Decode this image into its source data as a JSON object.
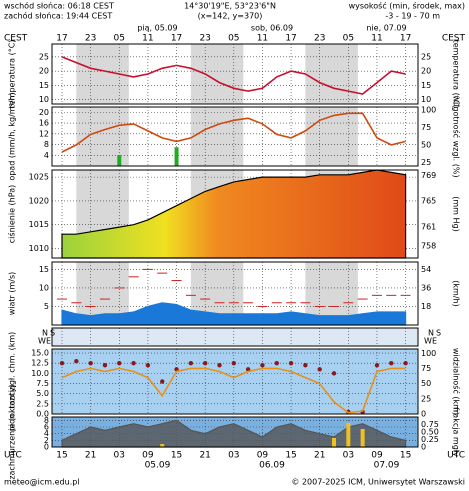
{
  "header": {
    "sunrise": "wschód słońca: 06:18 CEST",
    "sunset": "zachód słońca: 19:44 CEST",
    "coords": "14°30'19\"E, 53°23'6\"N",
    "grid": "(x=142, y=370)",
    "height_title": "wysokość (min, środek, max)",
    "height_values": "-3 - 19 - 70 m"
  },
  "footer": {
    "email": "meteo@icm.edu.pl",
    "copyright": "© 2007-2025 ICM, Uniwersytet Warszawski"
  },
  "time_axis": {
    "cest_label": "CEST",
    "utc_label": "UTC",
    "xlim": [
      -2.1,
      74.6
    ],
    "x": [
      0,
      3,
      6,
      9,
      12,
      15,
      18,
      21,
      24,
      27,
      30,
      33,
      36,
      39,
      42,
      45,
      48,
      51,
      54,
      57,
      60,
      63,
      66,
      69,
      72
    ],
    "cest_ticks": [
      {
        "value": 0,
        "label": "17"
      },
      {
        "value": 6,
        "label": "23"
      },
      {
        "value": 12,
        "label": "05"
      },
      {
        "value": 18,
        "label": "11"
      },
      {
        "value": 24,
        "label": "17"
      },
      {
        "value": 30,
        "label": "23"
      },
      {
        "value": 36,
        "label": "05"
      },
      {
        "value": 42,
        "label": "11"
      },
      {
        "value": 48,
        "label": "17"
      },
      {
        "value": 54,
        "label": "23"
      },
      {
        "value": 60,
        "label": "05"
      },
      {
        "value": 66,
        "label": "11"
      },
      {
        "value": 72,
        "label": "17"
      }
    ],
    "utc_ticks": [
      {
        "value": 0,
        "label": "15"
      },
      {
        "value": 6,
        "label": "21"
      },
      {
        "value": 12,
        "label": "03"
      },
      {
        "value": 18,
        "label": "09"
      },
      {
        "value": 24,
        "label": "15"
      },
      {
        "value": 30,
        "label": "21"
      },
      {
        "value": 36,
        "label": "03"
      },
      {
        "value": 42,
        "label": "09"
      },
      {
        "value": 48,
        "label": "15"
      },
      {
        "value": 54,
        "label": "21"
      },
      {
        "value": 60,
        "label": "03"
      },
      {
        "value": 66,
        "label": "09"
      },
      {
        "value": 72,
        "label": "15"
      }
    ],
    "top_dates": [
      {
        "value": 20,
        "label": "pią, 05.09"
      },
      {
        "value": 44,
        "label": "sob, 06.09"
      },
      {
        "value": 68,
        "label": "nie, 07.09"
      }
    ],
    "bottom_dates": [
      {
        "value": 20,
        "label": "05.09"
      },
      {
        "value": 44,
        "label": "06.09"
      },
      {
        "value": 68,
        "label": "07.09"
      }
    ]
  },
  "chart_data": [
    {
      "type": "line",
      "ylabel": "temperatura (°C)",
      "y2label": "temperatura (°C)",
      "ylim": [
        8.5,
        29.5
      ],
      "yticks": [
        10,
        15,
        20,
        25
      ],
      "y2lim": [
        8.5,
        29.5
      ],
      "y2ticks": [
        10,
        15,
        20,
        25
      ],
      "grid": true,
      "series": [
        {
          "type": "line",
          "color": "#c8102e",
          "values": [
            25,
            23,
            21,
            20,
            19,
            18,
            19,
            21,
            22,
            21,
            19,
            16,
            14,
            13,
            14,
            18,
            20,
            19,
            16,
            14,
            13,
            12,
            16,
            20,
            19
          ]
        }
      ]
    },
    {
      "type": "line",
      "ylabel": "opad (mm/h, kg/m²/h)",
      "y2label": "wilgotność wzgl. (%)",
      "ylim": [
        0,
        22
      ],
      "yticks": [
        4,
        8,
        12,
        16,
        20
      ],
      "y2lim": [
        20,
        104
      ],
      "y2ticks": [
        25,
        50,
        75,
        100
      ],
      "grid": true,
      "series": [
        {
          "type": "bar",
          "color": "#22aa22",
          "values": [
            0,
            0,
            0,
            0,
            4,
            0,
            0,
            0,
            7,
            0,
            0,
            0,
            0,
            0,
            0,
            0,
            0,
            0,
            0,
            0,
            0,
            0,
            0,
            0,
            0
          ]
        },
        {
          "type": "line",
          "axis": "y2",
          "color": "#d04a10",
          "values": [
            40,
            50,
            65,
            72,
            78,
            80,
            70,
            60,
            55,
            60,
            72,
            80,
            85,
            88,
            80,
            65,
            60,
            70,
            85,
            92,
            95,
            95,
            60,
            50,
            55
          ]
        }
      ]
    },
    {
      "type": "area",
      "ylabel": "ciśnienie (hPa)",
      "y2label": "(mm Hg)",
      "ylim": [
        1008,
        1026.5
      ],
      "yticks": [
        1010,
        1015,
        1020,
        1025
      ],
      "y2lim": [
        756.1,
        769.9
      ],
      "y2ticks": [
        758,
        761,
        765,
        769
      ],
      "grid": true,
      "series": [
        {
          "type": "area",
          "color": "#000000",
          "values": [
            1013,
            1013,
            1013.5,
            1014,
            1014.5,
            1015,
            1016,
            1017.5,
            1019,
            1020.5,
            1022,
            1023,
            1024,
            1024.5,
            1025,
            1025,
            1025,
            1025,
            1025.5,
            1025.5,
            1025.5,
            1026,
            1026.5,
            1026,
            1025.5
          ]
        }
      ]
    },
    {
      "type": "area",
      "ylabel": "wiatr (m/s)",
      "y2label": "(km/h)",
      "ylim": [
        0,
        17
      ],
      "yticks": [
        5,
        10,
        15
      ],
      "y2lim": [
        0,
        61.2
      ],
      "y2ticks": [
        18,
        36,
        54
      ],
      "grid": true,
      "series": [
        {
          "type": "area",
          "color": "#1a78d8",
          "values": [
            4,
            3,
            2.5,
            3,
            3,
            3.5,
            5,
            6,
            5.5,
            4,
            3.5,
            3,
            3,
            3,
            3,
            3,
            3.5,
            3,
            2.5,
            2.5,
            2.5,
            3,
            3.5,
            3.5,
            3.5
          ]
        },
        {
          "type": "dash",
          "color": "#d02020",
          "values": [
            7,
            6,
            5,
            7,
            10,
            13,
            15,
            14,
            12,
            8,
            7,
            6,
            6,
            6,
            5,
            6,
            6,
            6,
            5,
            5,
            6,
            7,
            8,
            8,
            8
          ]
        }
      ]
    },
    {
      "type": "direction",
      "labels": [
        "W",
        "N",
        "E",
        "S"
      ]
    },
    {
      "type": "line",
      "ylabel": "pion. rozciągł. chm. (km)",
      "y2label": "widzialność (km)",
      "ylim": [
        0,
        16
      ],
      "yticks": [
        {
          "value": 0,
          "label": "0.0"
        },
        2.5,
        {
          "value": 5,
          "label": "5.0"
        },
        7.5,
        {
          "value": 10,
          "label": "10.0"
        },
        12.5,
        {
          "value": 15,
          "label": "15.0"
        }
      ],
      "y2lim": [
        0,
        107
      ],
      "y2ticks": [
        0,
        25,
        50,
        75,
        100
      ],
      "grid": true,
      "series": [
        {
          "type": "dots",
          "color": "#8a1a1a",
          "values": [
            12.5,
            13,
            12.5,
            12,
            12.5,
            12.5,
            12,
            8,
            11,
            12.5,
            12.5,
            12,
            12.5,
            11,
            12,
            12.5,
            12.5,
            12,
            11,
            10,
            0.5,
            0.5,
            12,
            12.5,
            12.5
          ]
        },
        {
          "type": "line",
          "axis": "y2",
          "color": "#e8901a",
          "values": [
            60,
            70,
            75,
            70,
            75,
            70,
            60,
            30,
            70,
            75,
            75,
            70,
            60,
            70,
            75,
            75,
            70,
            60,
            50,
            20,
            2,
            5,
            70,
            75,
            75
          ]
        }
      ]
    },
    {
      "type": "area",
      "ylabel": "zachmurzenie (oktanty)",
      "y2label": "frakcja mgły",
      "ylim": [
        0,
        9
      ],
      "yticks": [
        0,
        2,
        4,
        6,
        8
      ],
      "y2lim": [
        0,
        1
      ],
      "y2ticks": [
        0,
        0.25,
        {
          "value": 0.5,
          "label": "0.50"
        },
        0.75
      ],
      "grid": true,
      "series": [
        {
          "type": "area",
          "color": "#555555",
          "values": [
            2,
            4,
            6,
            5,
            6,
            7,
            6,
            7,
            8,
            5,
            4,
            6,
            7,
            5,
            3,
            6,
            7,
            5,
            4,
            3,
            6,
            7,
            5,
            3,
            2
          ]
        },
        {
          "type": "bar",
          "axis": "y2",
          "color": "#f0c020",
          "values": [
            0,
            0,
            0,
            0,
            0,
            0,
            0,
            0.1,
            0,
            0,
            0,
            0,
            0,
            0,
            0,
            0,
            0,
            0,
            0,
            0.3,
            0.8,
            0.6,
            0,
            0,
            0
          ]
        }
      ]
    }
  ]
}
